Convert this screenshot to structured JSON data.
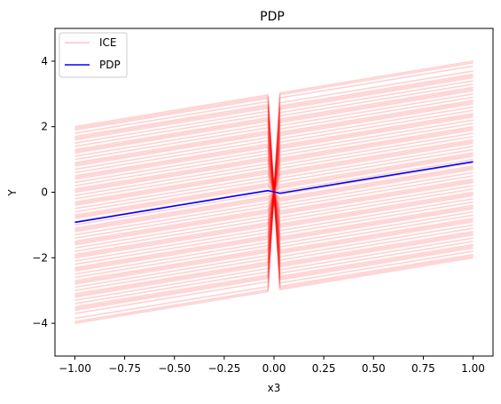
{
  "chart_data": {
    "type": "line",
    "title": "PDP",
    "xlabel": "x3",
    "ylabel": "Y",
    "xlim": [
      -1.1,
      1.1
    ],
    "ylim": [
      -5,
      5
    ],
    "xticks": [
      -1.0,
      -0.75,
      -0.5,
      -0.25,
      0.0,
      0.25,
      0.5,
      0.75,
      1.0
    ],
    "xtick_labels": [
      "−1.00",
      "−0.75",
      "−0.50",
      "−0.25",
      "0.00",
      "0.25",
      "0.50",
      "0.75",
      "1.00"
    ],
    "yticks": [
      -4,
      -2,
      0,
      2,
      4
    ],
    "ytick_labels": [
      "−4",
      "−2",
      "0",
      "2",
      "4"
    ],
    "grid": false,
    "legend": {
      "placement": "top-left",
      "entries": [
        {
          "label": "ICE",
          "color": "#ffc0cb"
        },
        {
          "label": "PDP",
          "color": "#0000ff"
        }
      ]
    },
    "series": [
      {
        "name": "ICE",
        "color": "#ff0000",
        "opacity": 0.18,
        "x": [
          -1.0,
          -0.03,
          0.03,
          1.0
        ],
        "lines_note": "slope 1 offsets",
        "offsets": [
          -3.0,
          -2.85,
          -2.7,
          -2.6,
          -2.5,
          -2.4,
          -2.3,
          -2.2,
          -2.1,
          -2.0,
          -1.9,
          -1.8,
          -1.7,
          -1.6,
          -1.5,
          -1.4,
          -1.3,
          -1.2,
          -1.1,
          -1.0,
          -0.9,
          -0.8,
          -0.7,
          -0.6,
          -0.5,
          -0.4,
          -0.3,
          -0.2,
          -0.1,
          0.0,
          0.1,
          0.2,
          0.3,
          0.4,
          0.5,
          0.6,
          0.7,
          0.8,
          0.9,
          1.0,
          1.1,
          1.2,
          1.3,
          1.4,
          1.5,
          1.6,
          1.7,
          1.8,
          1.9,
          2.0,
          2.1,
          2.2,
          2.3,
          2.4,
          2.5,
          2.6,
          2.7,
          2.8,
          2.9,
          3.0,
          -2.95,
          -2.55,
          -2.15,
          -1.75,
          -1.35,
          -0.95,
          -0.55,
          -0.15,
          0.25,
          0.65,
          1.05,
          1.45,
          1.85,
          2.25,
          2.65,
          2.95
        ]
      },
      {
        "name": "PDP",
        "color": "#0000ff",
        "x": [
          -1.0,
          -0.03,
          0.03,
          1.0
        ],
        "y": [
          -0.92,
          0.05,
          -0.03,
          0.93
        ]
      }
    ]
  }
}
